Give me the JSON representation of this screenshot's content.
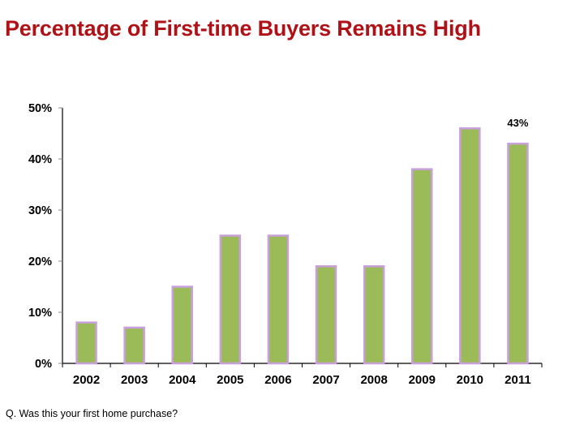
{
  "title": "Percentage of First-time Buyers Remains High",
  "footnote": "Q. Was this your first home purchase?",
  "colors": {
    "title": "#b01116",
    "bar_fill": "#9bbb59",
    "bar_border": "#c9a0dc",
    "axis": "#000000"
  },
  "chart_data": {
    "type": "bar",
    "title": "Percentage of First-time Buyers Remains High",
    "xlabel": "",
    "ylabel": "",
    "categories": [
      "2002",
      "2003",
      "2004",
      "2005",
      "2006",
      "2007",
      "2008",
      "2009",
      "2010",
      "2011"
    ],
    "values": [
      8,
      7,
      15,
      25,
      25,
      19,
      19,
      38,
      46,
      43
    ],
    "ylim": [
      0,
      50
    ],
    "yticks": [
      "0%",
      "10%",
      "20%",
      "30%",
      "40%",
      "50%"
    ],
    "grid": false,
    "legend": null,
    "annotations": [
      {
        "category": "2011",
        "text": "43%"
      }
    ]
  }
}
